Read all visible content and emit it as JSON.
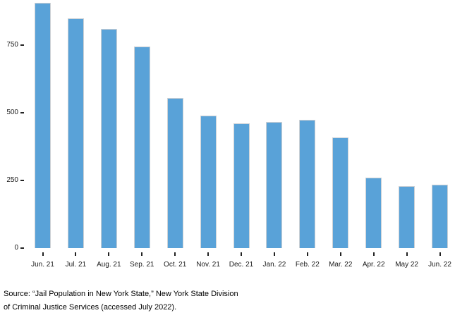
{
  "chart_data": {
    "type": "bar",
    "categories": [
      "Jun. 21",
      "Jul. 21",
      "Aug. 21",
      "Sep. 21",
      "Oct. 21",
      "Nov. 21",
      "Dec. 21",
      "Jan. 22",
      "Feb. 22",
      "Mar. 22",
      "Apr. 22",
      "May 22",
      "Jun. 22"
    ],
    "values": [
      905,
      850,
      810,
      745,
      555,
      490,
      460,
      465,
      475,
      410,
      260,
      230,
      235
    ],
    "title": "",
    "xlabel": "",
    "ylabel": "",
    "ylim": [
      0,
      915
    ],
    "yticks": [
      0,
      250,
      500,
      750
    ],
    "grid": false,
    "legend_position": "none",
    "bar_color": "#59A2D8",
    "bar_border_color": "#CDD1D5",
    "tick_color": "#222222"
  },
  "source_note": {
    "line1": "Source: “Jail Population in New York State,” New York State Division",
    "line2": "of Criminal Justice Services (accessed July 2022)."
  }
}
